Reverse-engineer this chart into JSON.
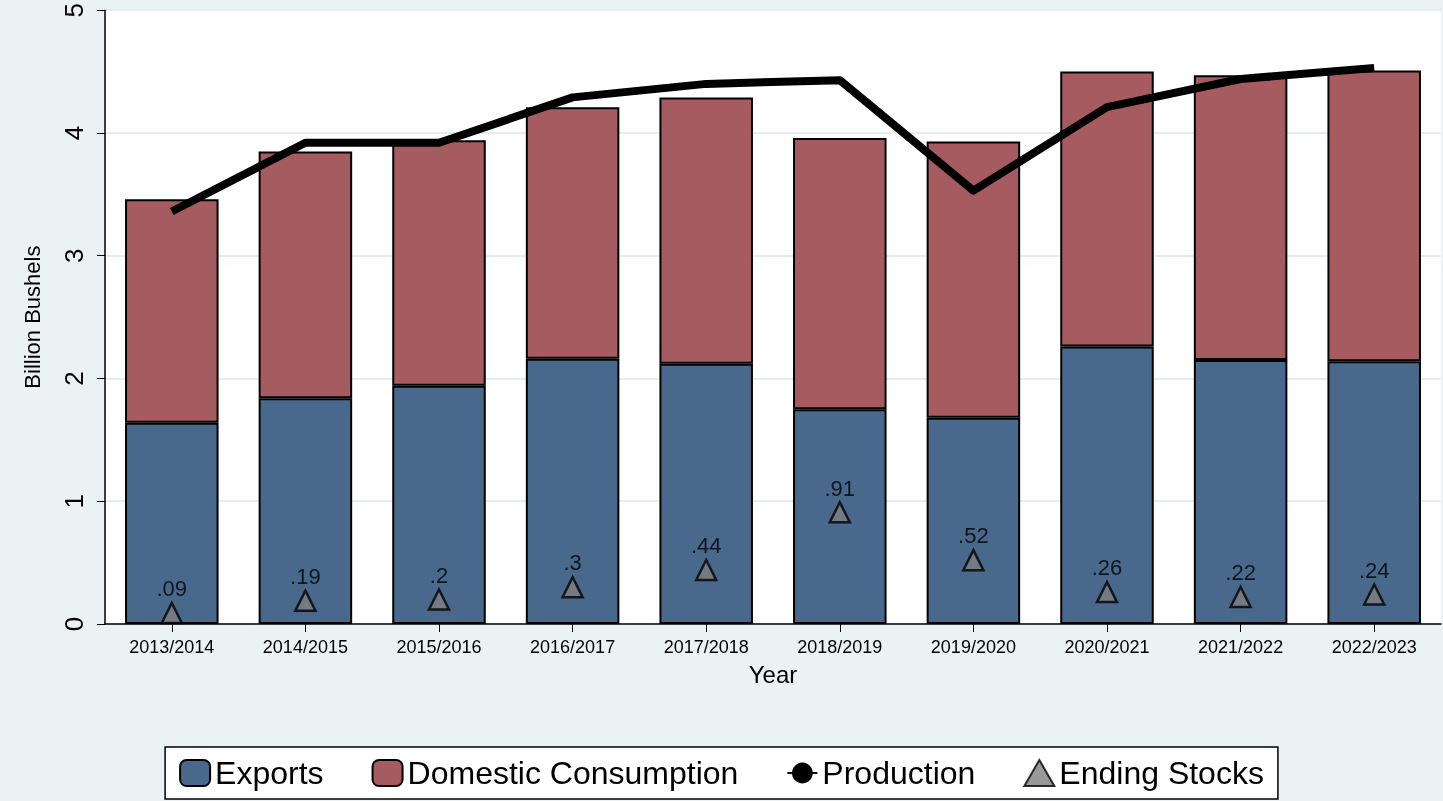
{
  "chart_data": {
    "type": "bar",
    "xlabel": "Year",
    "ylabel": "Billion Bushels",
    "categories": [
      "2013/2014",
      "2014/2015",
      "2015/2016",
      "2016/2017",
      "2017/2018",
      "2018/2019",
      "2019/2020",
      "2020/2021",
      "2021/2022",
      "2022/2023"
    ],
    "stacked": true,
    "series": [
      {
        "name": "Exports",
        "color": "#48698c",
        "values": [
          1.64,
          1.84,
          1.94,
          2.16,
          2.12,
          1.75,
          1.68,
          2.26,
          2.15,
          2.14
        ]
      },
      {
        "name": "Domestic Consumption",
        "color": "#a55b5f",
        "values": [
          1.82,
          2.01,
          2.0,
          2.05,
          2.17,
          2.21,
          2.25,
          2.24,
          2.32,
          2.37
        ]
      },
      {
        "name": "Production",
        "type": "line",
        "color": "#000000",
        "marker": "none",
        "values": [
          3.36,
          3.92,
          3.92,
          4.29,
          4.4,
          4.43,
          3.53,
          4.21,
          4.44,
          4.53
        ]
      },
      {
        "name": "Ending Stocks",
        "type": "scatter",
        "color": "#808080",
        "marker": "triangle",
        "values": [
          0.09,
          0.19,
          0.2,
          0.3,
          0.44,
          0.91,
          0.52,
          0.26,
          0.22,
          0.24
        ],
        "value_labels": [
          ".09",
          ".19",
          ".2",
          ".3",
          ".44",
          ".91",
          ".52",
          ".26",
          ".22",
          ".24"
        ]
      }
    ],
    "ylim": [
      0,
      5
    ],
    "yticks": [
      0,
      1,
      2,
      3,
      4,
      5
    ],
    "grid": "y",
    "legend": "bottom"
  }
}
